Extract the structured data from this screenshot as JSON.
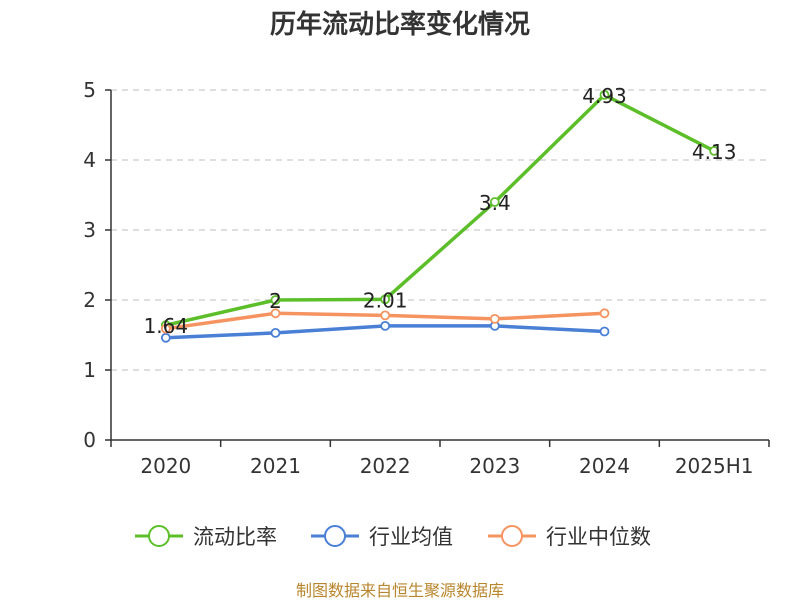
{
  "chart_data": {
    "type": "line",
    "title": "历年流动比率变化情况",
    "xlabel": "",
    "ylabel": "",
    "categories": [
      "2020",
      "2021",
      "2022",
      "2023",
      "2024",
      "2025H1"
    ],
    "ylim": [
      0,
      5
    ],
    "yticks": [
      "0",
      "1",
      "2",
      "3",
      "4",
      "5"
    ],
    "grid": true,
    "legend_position": "bottom",
    "series": [
      {
        "name": "流动比率",
        "color": "#5cbf2a",
        "values": [
          1.64,
          2,
          2.01,
          3.4,
          4.93,
          4.13
        ],
        "labels": [
          "1.64",
          "2",
          "2.01",
          "3.4",
          "4.93",
          "4.13"
        ]
      },
      {
        "name": "行业均值",
        "color": "#4a7fd6",
        "values": [
          1.46,
          1.53,
          1.63,
          1.63,
          1.55,
          null
        ]
      },
      {
        "name": "行业中位数",
        "color": "#f59461",
        "values": [
          1.59,
          1.81,
          1.78,
          1.73,
          1.81,
          null
        ]
      }
    ]
  },
  "source": "制图数据来自恒生聚源数据库"
}
